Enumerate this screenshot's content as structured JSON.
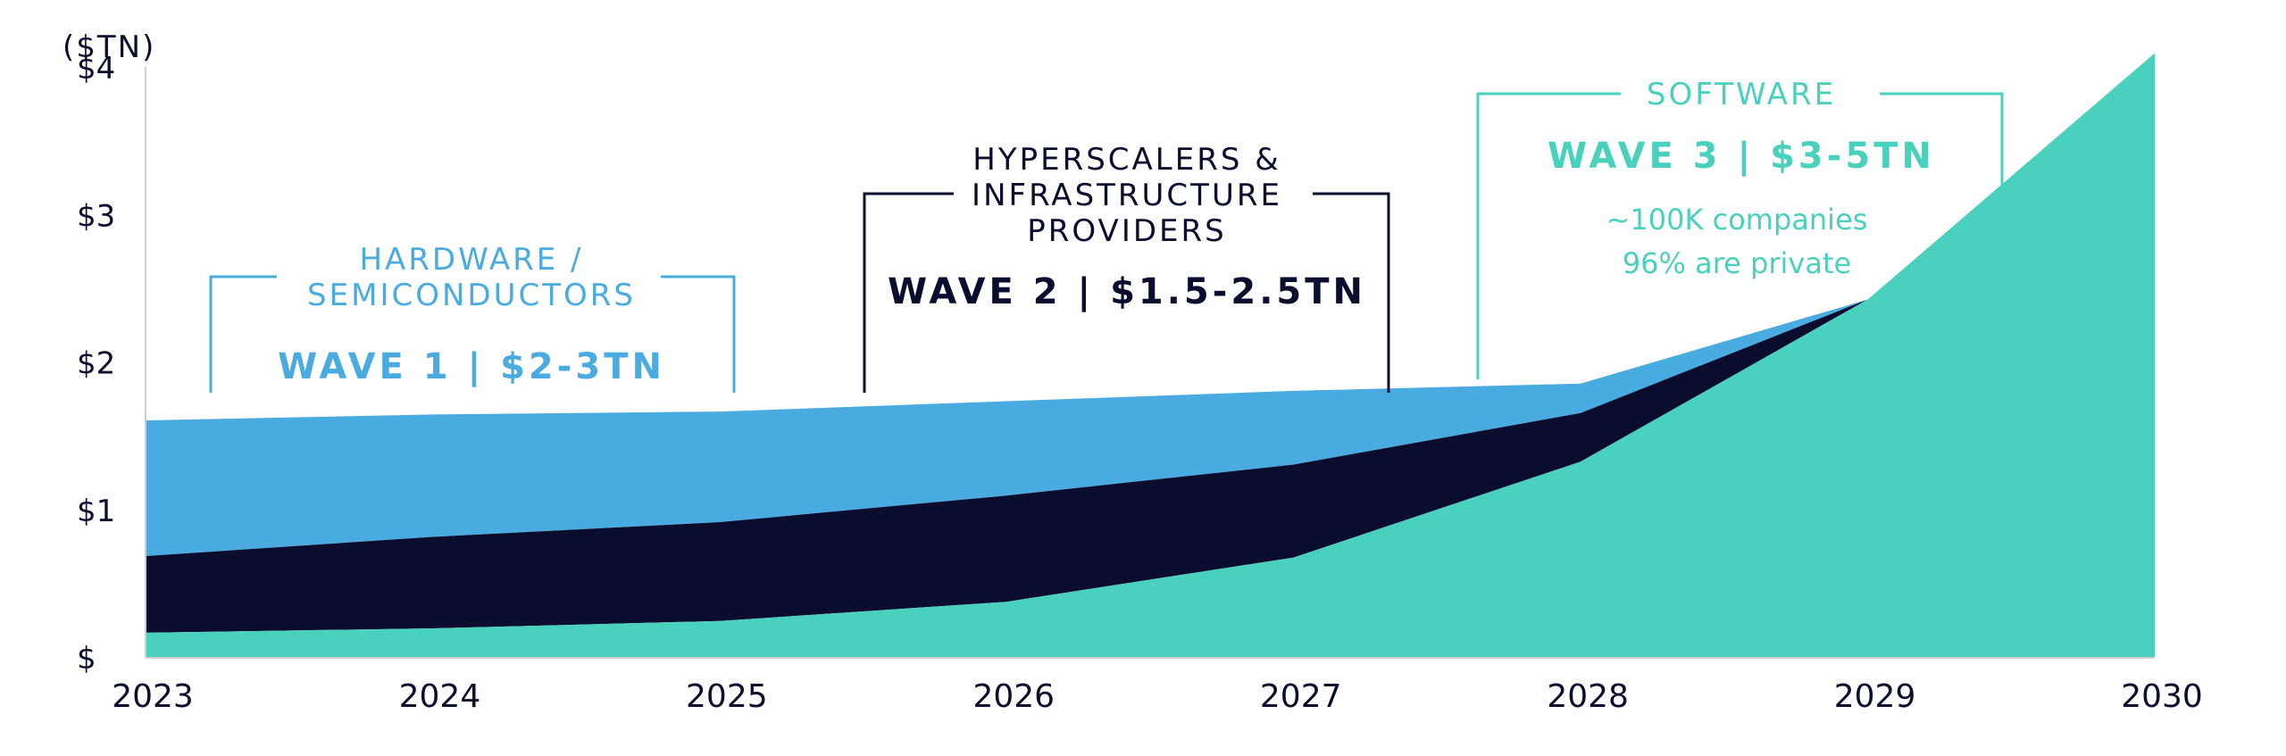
{
  "colors": {
    "hardware": "#4aabe0",
    "hyperscalers": "#0b0d2f",
    "software": "#4ad1bd",
    "axis_text": "#0b0d2f"
  },
  "chart_data": {
    "type": "area",
    "stacked": true,
    "unit_label": "($TN)",
    "x": [
      "2023",
      "2024",
      "2025",
      "2026",
      "2027",
      "2028",
      "2029",
      "2030"
    ],
    "y_ticks": [
      "$",
      "$1",
      "$2",
      "$3",
      "$4"
    ],
    "ylim": [
      0,
      4.2
    ],
    "series": [
      {
        "name": "Software",
        "values": [
          0.17,
          0.2,
          0.25,
          0.38,
          0.68,
          1.33,
          2.43,
          4.1
        ]
      },
      {
        "name": "Hyperscalers & Infrastructure Providers",
        "values": [
          0.52,
          0.62,
          0.67,
          0.72,
          0.63,
          0.33,
          0,
          0
        ]
      },
      {
        "name": "Hardware / Semiconductors",
        "values": [
          0.92,
          0.83,
          0.75,
          0.64,
          0.5,
          0.2,
          0,
          0
        ]
      }
    ],
    "annotations": [
      {
        "category_lines": [
          "HARDWARE /",
          "SEMICONDUCTORS"
        ],
        "wave": "WAVE 1 | $2-3TN",
        "notes": []
      },
      {
        "category_lines": [
          "HYPERSCALERS &",
          "INFRASTRUCTURE",
          "PROVIDERS"
        ],
        "wave": "WAVE 2 | $1.5-2.5TN",
        "notes": []
      },
      {
        "category_lines": [
          "SOFTWARE"
        ],
        "wave": "WAVE 3 | $3-5TN",
        "notes": [
          "~100K companies",
          "96% are private"
        ]
      }
    ]
  }
}
